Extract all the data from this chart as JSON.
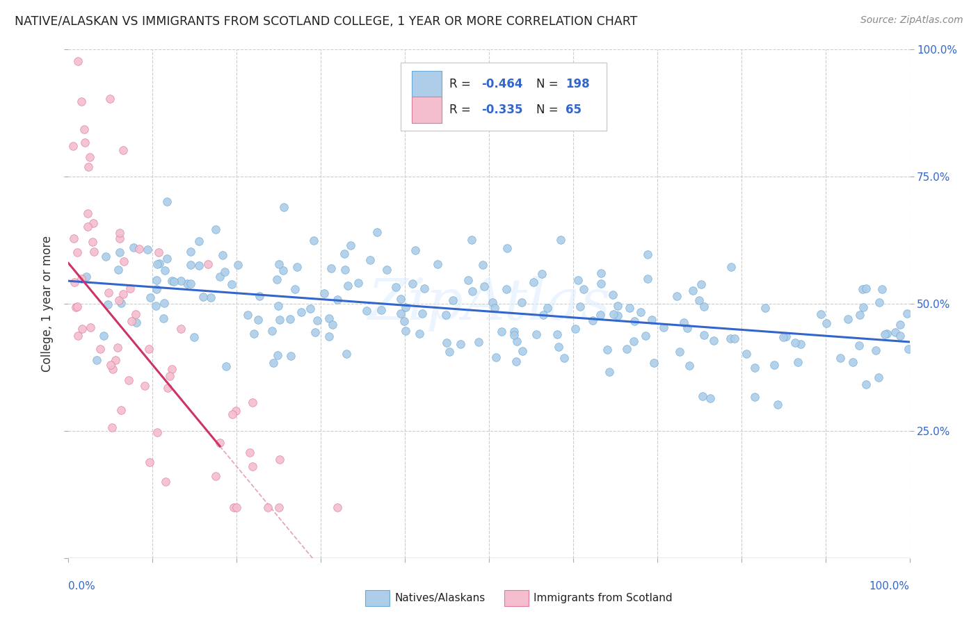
{
  "title": "NATIVE/ALASKAN VS IMMIGRANTS FROM SCOTLAND COLLEGE, 1 YEAR OR MORE CORRELATION CHART",
  "source": "Source: ZipAtlas.com",
  "ylabel": "College, 1 year or more",
  "watermark": "ZipAtlas",
  "native_color": "#aecde8",
  "native_color_edge": "#6aaad4",
  "immigrant_color": "#f4bece",
  "immigrant_color_edge": "#e07898",
  "trend1_color": "#3366cc",
  "trend2_color": "#cc3366",
  "trend2_dash_color": "#e8a0b8",
  "background_color": "#ffffff",
  "grid_color": "#cccccc",
  "r1": "-0.464",
  "n1": "198",
  "r2": "-0.335",
  "n2": "65",
  "legend_text_color": "#3366cc",
  "axis_label_color": "#3366cc"
}
